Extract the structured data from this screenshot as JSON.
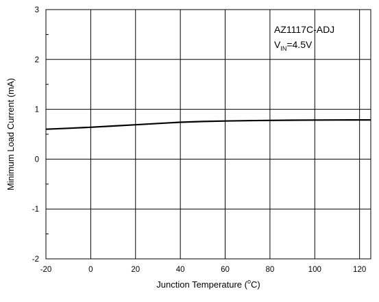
{
  "chart_data": {
    "type": "line",
    "xlabel": "Junction Temperature (",
    "xlabel_sup": "o",
    "xlabel_unit": "C)",
    "ylabel": "Minimum Load Current (mA)",
    "xlim": [
      -20,
      125
    ],
    "ylim": [
      -2,
      3
    ],
    "x_ticks": [
      "-20",
      "0",
      "20",
      "40",
      "60",
      "80",
      "100",
      "120"
    ],
    "y_ticks": [
      "3",
      "2",
      "1",
      "0",
      "-1",
      "-2"
    ],
    "grid": true,
    "annotation": {
      "line1": "AZ1117C-ADJ",
      "line2_main": "V",
      "line2_sub": "IN",
      "line2_rest": "=4.5V"
    },
    "series": [
      {
        "x": [
          -20,
          -10,
          0,
          10,
          20,
          30,
          40,
          50,
          60,
          70,
          80,
          90,
          100,
          110,
          120,
          125
        ],
        "y": [
          0.6,
          0.62,
          0.64,
          0.665,
          0.69,
          0.715,
          0.74,
          0.755,
          0.765,
          0.772,
          0.778,
          0.782,
          0.785,
          0.786,
          0.787,
          0.787
        ]
      }
    ],
    "line_color": "#000000"
  }
}
